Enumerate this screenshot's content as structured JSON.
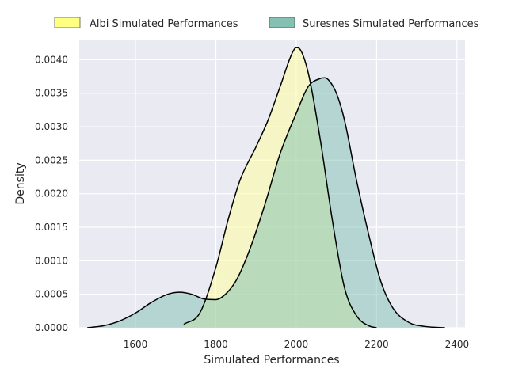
{
  "chart_data": {
    "type": "area",
    "xlabel": "Simulated Performances",
    "ylabel": "Density",
    "xlim": [
      1460,
      2420
    ],
    "ylim": [
      0,
      0.0043
    ],
    "xticks": [
      1600,
      1800,
      2000,
      2200,
      2400
    ],
    "xtick_labels": [
      "1600",
      "1800",
      "2000",
      "2200",
      "2400"
    ],
    "yticks": [
      0,
      0.0005,
      0.001,
      0.0015,
      0.002,
      0.0025,
      0.003,
      0.0035,
      0.004
    ],
    "ytick_labels": [
      "0.0000",
      "0.0005",
      "0.0010",
      "0.0015",
      "0.0020",
      "0.0025",
      "0.0030",
      "0.0035",
      "0.0040"
    ],
    "grid": true,
    "legend_placement": "top-center",
    "series": [
      {
        "name": "Albi Simulated Performances",
        "fill_color": "#ffff99",
        "x": [
          1720,
          1760,
          1800,
          1830,
          1860,
          1900,
          1930,
          1960,
          1990,
          2000,
          2010,
          2030,
          2060,
          2090,
          2120,
          2150,
          2180,
          2200
        ],
        "values": [
          5e-05,
          0.00022,
          0.0009,
          0.0016,
          0.0022,
          0.0027,
          0.0031,
          0.0036,
          0.0041,
          0.00418,
          0.00415,
          0.0038,
          0.0028,
          0.0016,
          0.0006,
          0.00018,
          3e-05,
          0.0
        ]
      },
      {
        "name": "Suresnes Simulated Performances",
        "fill_color": "#7fbfb2",
        "x": [
          1480,
          1520,
          1560,
          1600,
          1640,
          1680,
          1710,
          1740,
          1770,
          1800,
          1820,
          1850,
          1880,
          1920,
          1960,
          2000,
          2030,
          2060,
          2070,
          2080,
          2100,
          2120,
          2150,
          2180,
          2210,
          2240,
          2280,
          2320,
          2370
        ],
        "values": [
          0.0,
          3e-05,
          0.0001,
          0.00022,
          0.00038,
          0.0005,
          0.00053,
          0.0005,
          0.00043,
          0.00042,
          0.00048,
          0.0007,
          0.0011,
          0.0018,
          0.0026,
          0.0032,
          0.0036,
          0.00372,
          0.00373,
          0.0037,
          0.0035,
          0.0031,
          0.0022,
          0.0014,
          0.0007,
          0.0003,
          8e-05,
          2e-05,
          0.0
        ]
      }
    ],
    "overlap_color": "#c2dd9a"
  }
}
